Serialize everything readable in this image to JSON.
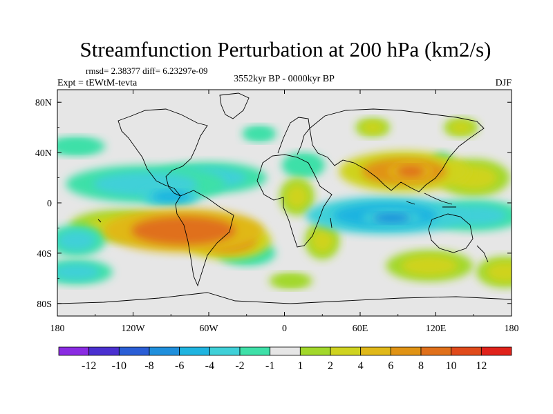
{
  "chart_data": {
    "type": "heatmap",
    "title": "Streamfunction Perturbation at 200 hPa (km2/s)",
    "stats_line": "rmsd= 2.38377 diff= 6.23297e-09",
    "experiment_label": "Expt = tEWtM-tevta",
    "time_label": "3552kyr BP - 0000kyr BP",
    "season_label": "DJF",
    "xlim": [
      -180,
      180
    ],
    "ylim": [
      -90,
      90
    ],
    "x_ticks": [
      {
        "value": -180,
        "label": "180"
      },
      {
        "value": -120,
        "label": "120W"
      },
      {
        "value": -60,
        "label": "60W"
      },
      {
        "value": 0,
        "label": "0"
      },
      {
        "value": 60,
        "label": "60E"
      },
      {
        "value": 120,
        "label": "120E"
      },
      {
        "value": 180,
        "label": "180"
      }
    ],
    "y_ticks": [
      {
        "value": 80,
        "label": "80N"
      },
      {
        "value": 40,
        "label": "40N"
      },
      {
        "value": 0,
        "label": "0"
      },
      {
        "value": -40,
        "label": "40S"
      },
      {
        "value": -80,
        "label": "80S"
      }
    ],
    "colorbar": {
      "colors": [
        "#8a2be2",
        "#4a30d0",
        "#2a5ed6",
        "#1f8fdc",
        "#1fb4e0",
        "#3fd0d8",
        "#3ee0a8",
        "#e6e6e6",
        "#a2d82a",
        "#cfd31f",
        "#e0b818",
        "#e09314",
        "#e0701a",
        "#e04a1a",
        "#e0221a"
      ],
      "labels": [
        "-12",
        "-10",
        "-8",
        "-6",
        "-4",
        "-2",
        "-1",
        "1",
        "2",
        "4",
        "6",
        "8",
        "10",
        "12"
      ]
    },
    "anomalies": [
      {
        "name": "southern-subtropical-atlantic-high",
        "lon": -80,
        "lat": -22,
        "rlon": 55,
        "rlat": 14,
        "value": 9.5
      },
      {
        "name": "south-america-east-extension",
        "lon": -45,
        "lat": -30,
        "rlon": 30,
        "rlat": 12,
        "value": 6
      },
      {
        "name": "southeast-pacific-high",
        "lon": -130,
        "lat": -18,
        "rlon": 35,
        "rlat": 10,
        "value": 3
      },
      {
        "name": "african-arc-north",
        "lon": 10,
        "lat": 5,
        "rlon": 12,
        "rlat": 12,
        "value": 2.5
      },
      {
        "name": "african-arc-south",
        "lon": 30,
        "lat": -30,
        "rlon": 12,
        "rlat": 12,
        "value": 2.5
      },
      {
        "name": "asian-high",
        "lon": 95,
        "lat": 25,
        "rlon": 45,
        "rlat": 13,
        "value": 7
      },
      {
        "name": "asian-high-core",
        "lon": 100,
        "lat": 25,
        "rlon": 15,
        "rlat": 6,
        "value": 9
      },
      {
        "name": "north-pacific-east-extension",
        "lon": 150,
        "lat": 20,
        "rlon": 25,
        "rlat": 12,
        "value": 3
      },
      {
        "name": "eurasia-small-high",
        "lon": 70,
        "lat": 60,
        "rlon": 12,
        "rlat": 6,
        "value": 2
      },
      {
        "name": "siberia-high",
        "lon": 140,
        "lat": 60,
        "rlon": 12,
        "rlat": 6,
        "value": 2
      },
      {
        "name": "south-indian-ocean-high",
        "lon": 115,
        "lat": -50,
        "rlon": 30,
        "rlat": 10,
        "value": 2
      },
      {
        "name": "southern-ocean-atlantic-high",
        "lon": 5,
        "lat": -62,
        "rlon": 15,
        "rlat": 5,
        "value": 1.5
      },
      {
        "name": "south-west-pacific-high",
        "lon": 175,
        "lat": -55,
        "rlon": 20,
        "rlat": 10,
        "value": 2
      },
      {
        "name": "north-america-low",
        "lon": -110,
        "lat": 15,
        "rlon": 55,
        "rlat": 12,
        "value": -4
      },
      {
        "name": "north-atlantic-low",
        "lon": -60,
        "lat": 20,
        "rlon": 40,
        "rlat": 10,
        "value": -3
      },
      {
        "name": "caribbean-low-core",
        "lon": -90,
        "lat": 5,
        "rlon": 20,
        "rlat": 6,
        "value": -6
      },
      {
        "name": "north-africa-low",
        "lon": 15,
        "lat": 30,
        "rlon": 15,
        "rlat": 8,
        "value": -2
      },
      {
        "name": "indian-ocean-low",
        "lon": 80,
        "lat": -10,
        "rlon": 55,
        "rlat": 12,
        "value": -5
      },
      {
        "name": "indian-ocean-low-core",
        "lon": 85,
        "lat": -12,
        "rlon": 20,
        "rlat": 5,
        "value": -6.5
      },
      {
        "name": "australia-pacific-low",
        "lon": 150,
        "lat": -10,
        "rlon": 35,
        "rlat": 10,
        "value": -4
      },
      {
        "name": "south-pacific-low",
        "lon": -165,
        "lat": -30,
        "rlon": 20,
        "rlat": 10,
        "value": -3
      },
      {
        "name": "southern-ocean-atlantic-low",
        "lon": -30,
        "lat": -40,
        "rlon": 20,
        "rlat": 8,
        "value": -2
      },
      {
        "name": "south-pacific-southern-low",
        "lon": -165,
        "lat": -55,
        "rlon": 25,
        "rlat": 8,
        "value": -3
      },
      {
        "name": "north-pacific-low",
        "lon": -165,
        "lat": 45,
        "rlon": 20,
        "rlat": 6,
        "value": -2
      },
      {
        "name": "north-atlantic-small-low",
        "lon": -20,
        "lat": 55,
        "rlon": 12,
        "rlat": 5,
        "value": -2
      },
      {
        "name": "east-asia-low",
        "lon": 125,
        "lat": 30,
        "rlon": 8,
        "rlat": 8,
        "value": -1.5
      }
    ]
  }
}
